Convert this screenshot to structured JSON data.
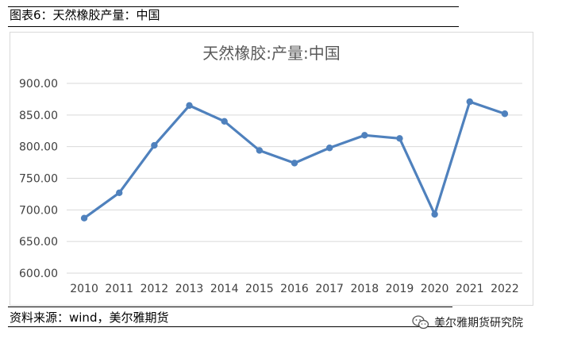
{
  "caption": "图表6：天然橡胶产量：中国",
  "source": "资料来源：wind，美尔雅期货",
  "watermark": {
    "text": "美尔雅期货研究院",
    "icon": "wechat-icon"
  },
  "chart_data": {
    "type": "line",
    "title": "天然橡胶:产量:中国",
    "xlabel": "",
    "ylabel": "",
    "x": [
      "2010",
      "2011",
      "2012",
      "2013",
      "2014",
      "2015",
      "2016",
      "2017",
      "2018",
      "2019",
      "2020",
      "2021",
      "2022"
    ],
    "series": [
      {
        "values": [
          687,
          727,
          802,
          865,
          840,
          794,
          774,
          798,
          818,
          813,
          693,
          871,
          852
        ]
      }
    ],
    "ylim": [
      600,
      900
    ],
    "yticks": [
      "600.00",
      "650.00",
      "700.00",
      "750.00",
      "800.00",
      "850.00",
      "900.00"
    ],
    "grid": true,
    "legend": "none",
    "colors": {
      "line": "#4f81bd",
      "grid": "#d9d9d9",
      "title": "#595959",
      "tick": "#404040"
    }
  }
}
